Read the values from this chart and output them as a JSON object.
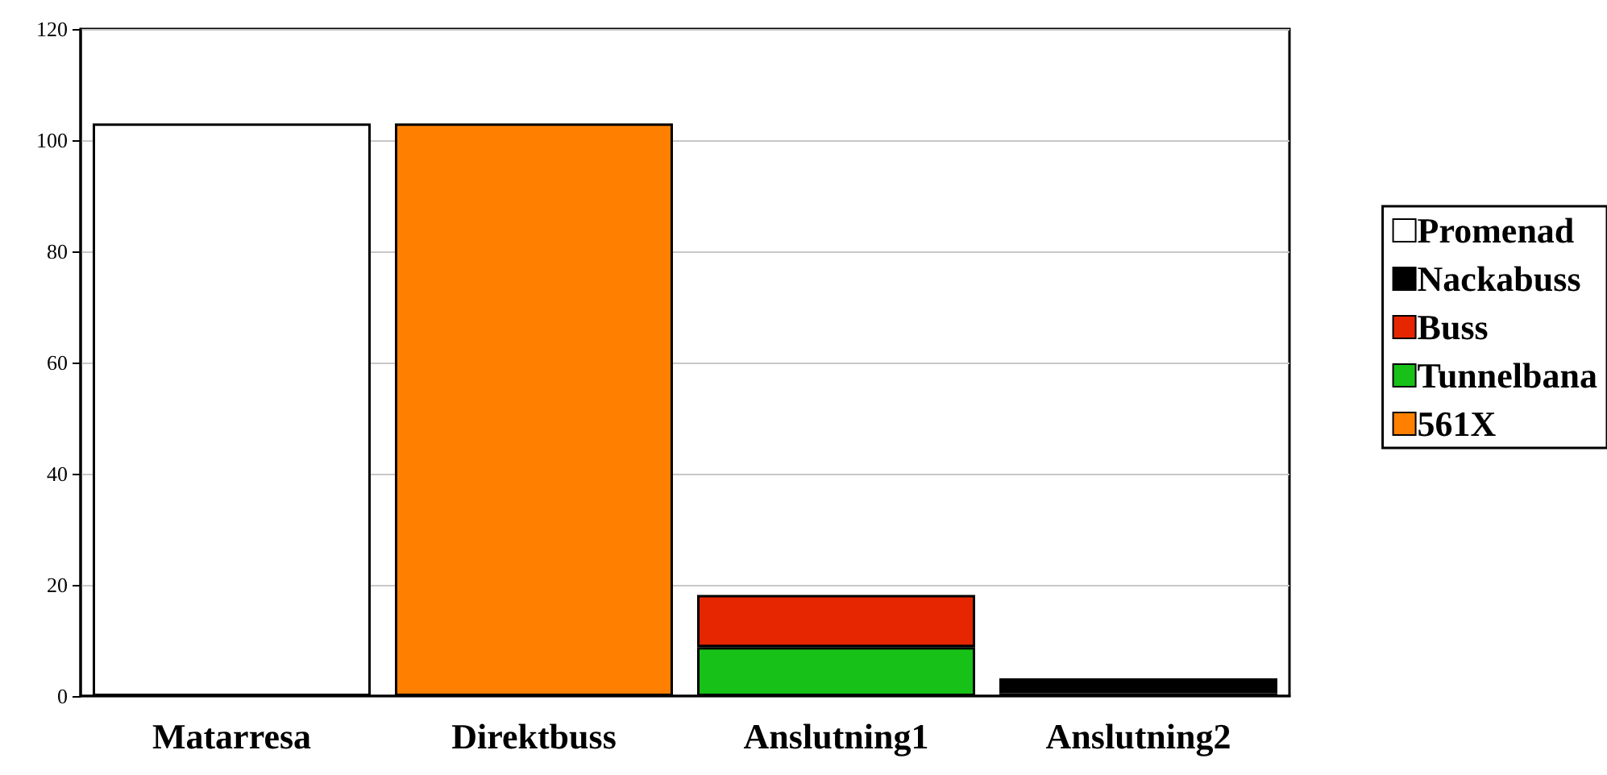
{
  "chart_data": {
    "type": "bar",
    "stacked": true,
    "categories": [
      "Matarresa",
      "Direktbuss",
      "Anslutning1",
      "Anslutning2"
    ],
    "series": [
      {
        "name": "561X",
        "color": "#ff8000",
        "values": [
          null,
          103,
          null,
          null
        ]
      },
      {
        "name": "Tunnelbana",
        "color": "#17c117",
        "values": [
          null,
          null,
          8.8,
          0.5
        ]
      },
      {
        "name": "Buss",
        "color": "#e62600",
        "values": [
          null,
          null,
          9.4,
          null
        ]
      },
      {
        "name": "Nackabuss",
        "color": "#000000",
        "values": [
          null,
          null,
          null,
          2.7
        ]
      },
      {
        "name": "Promenad",
        "color": "#ffffff",
        "values": [
          103,
          null,
          null,
          null
        ]
      }
    ],
    "ylim": [
      0,
      120
    ],
    "yticks": [
      0,
      20,
      40,
      60,
      80,
      100,
      120
    ],
    "grid": "y",
    "legend": "right"
  }
}
